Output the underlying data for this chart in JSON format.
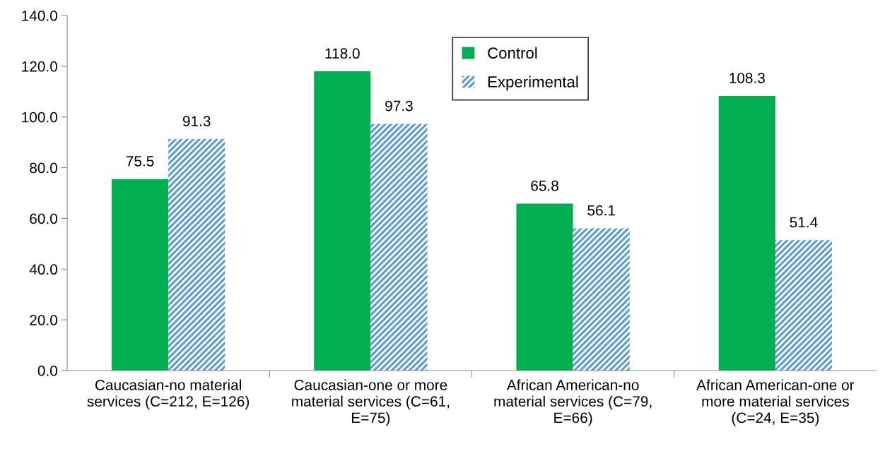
{
  "chart_data": {
    "type": "bar",
    "categories": [
      "Caucasian-no material\nservices (C=212, E=126)",
      "Caucasian-one or more\nmaterial services (C=61,\nE=75)",
      "African American-no\nmaterial services (C=79,\nE=66)",
      "African American-one or\nmore material services\n(C=24, E=35)"
    ],
    "series": [
      {
        "name": "Control",
        "color": "#00b050",
        "values": [
          75.5,
          118.0,
          65.8,
          108.3
        ],
        "value_labels": [
          "75.5",
          "118.0",
          "65.8",
          "108.3"
        ]
      },
      {
        "name": "Experimental",
        "color": "#5b9bd5",
        "values": [
          91.3,
          97.3,
          56.1,
          51.4
        ],
        "value_labels": [
          "91.3",
          "97.3",
          "56.1",
          "51.4"
        ]
      }
    ],
    "ylim": [
      0,
      140
    ],
    "yticks": [
      {
        "value": 0,
        "label": "0.0"
      },
      {
        "value": 20,
        "label": "20.0"
      },
      {
        "value": 40,
        "label": "40.0"
      },
      {
        "value": 60,
        "label": "60.0"
      },
      {
        "value": 80,
        "label": "80.0"
      },
      {
        "value": 100,
        "label": "100.0"
      },
      {
        "value": 120,
        "label": "120.0"
      },
      {
        "value": 140,
        "label": "140.0"
      }
    ],
    "grid": false,
    "legend": "top"
  }
}
